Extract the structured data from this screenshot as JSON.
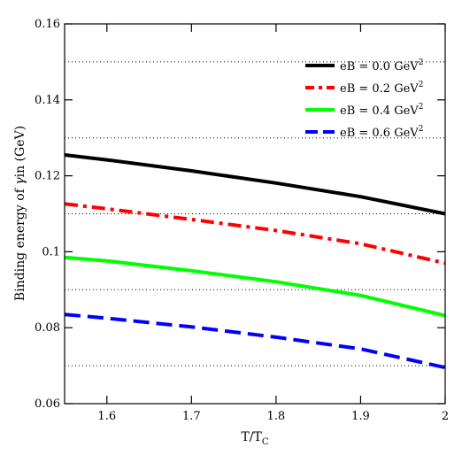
{
  "chart_data": {
    "type": "line",
    "title": "",
    "xlabel": {
      "main": "T/T",
      "sub": "C"
    },
    "ylabel": {
      "pre": "Binding energy of ",
      "symbol": "γ",
      "post": "in (GeV)"
    },
    "xlim": [
      1.55,
      2.0
    ],
    "ylim": [
      0.06,
      0.16
    ],
    "x_ticks": [
      1.6,
      1.7,
      1.8,
      1.9,
      2
    ],
    "x_tick_labels": [
      "1.6",
      "1.7",
      "1.8",
      "1.9",
      "2"
    ],
    "y_ticks": [
      0.06,
      0.08,
      0.1,
      0.12,
      0.14,
      0.16
    ],
    "y_tick_labels": [
      "0.06",
      "0.08",
      "0.1",
      "0.12",
      "0.14",
      "0.16"
    ],
    "grid": {
      "horizontal_dotted_at": [
        0.07,
        0.09,
        0.11,
        0.13,
        0.15
      ]
    },
    "legend_position": "top-right",
    "series": [
      {
        "name": {
          "pre": "eB = 0.0 GeV",
          "sup": "2"
        },
        "color": "#000000",
        "style": "solid",
        "x": [
          1.55,
          1.6,
          1.7,
          1.8,
          1.9,
          2.0
        ],
        "y": [
          0.1255,
          0.1242,
          0.1213,
          0.1181,
          0.1145,
          0.11
        ]
      },
      {
        "name": {
          "pre": "eB = 0.2 GeV",
          "sup": "2"
        },
        "color": "#ff0000",
        "style": "dash-dot",
        "x": [
          1.55,
          1.6,
          1.7,
          1.8,
          1.9,
          2.0
        ],
        "y": [
          0.1126,
          0.1113,
          0.1085,
          0.1056,
          0.1021,
          0.097
        ]
      },
      {
        "name": {
          "pre": "eB = 0.4 GeV",
          "sup": "2"
        },
        "color": "#00ff00",
        "style": "solid",
        "x": [
          1.55,
          1.6,
          1.7,
          1.8,
          1.9,
          2.0
        ],
        "y": [
          0.0985,
          0.0976,
          0.095,
          0.0921,
          0.0885,
          0.0832
        ]
      },
      {
        "name": {
          "pre": "eB = 0.6 GeV",
          "sup": "2"
        },
        "color": "#0000ff",
        "style": "dashed",
        "x": [
          1.55,
          1.6,
          1.7,
          1.8,
          1.9,
          2.0
        ],
        "y": [
          0.0835,
          0.0825,
          0.0802,
          0.0775,
          0.0744,
          0.0695
        ]
      }
    ]
  }
}
